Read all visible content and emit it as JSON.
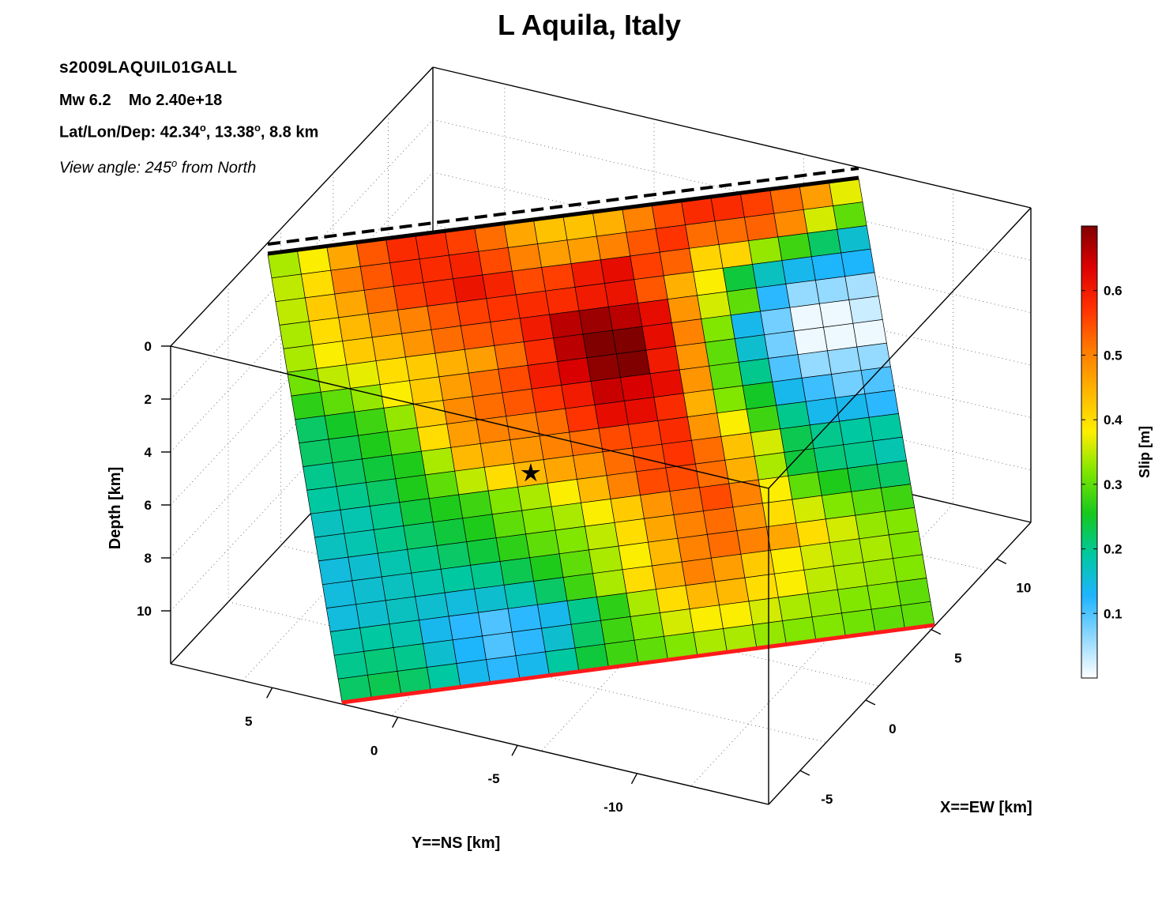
{
  "chart_data": {
    "type": "heatmap",
    "title": "L Aquila, Italy",
    "event_id": "s2009LAQUIL01GALL",
    "magnitude": "Mw 6.2",
    "moment": "Mo 2.40e+18",
    "hypocenter_prefix": "Lat/Lon/Dep: 42.34",
    "hypocenter_lon": ", 13.38",
    "hypocenter_dep": ", 8.8 km",
    "degree_symbol": "o",
    "view_prefix": "View angle: 245",
    "view_suffix": " from North",
    "xlabel": "X==EW [km]",
    "ylabel": "Y==NS [km]",
    "zlabel": "Depth [km]",
    "colorbar_label": "Slip [m]",
    "x_ticks": [
      "-5",
      "0",
      "5",
      "10"
    ],
    "y_ticks": [
      "5",
      "0",
      "-5",
      "-10"
    ],
    "z_ticks": [
      "0",
      "2",
      "4",
      "6",
      "8",
      "10"
    ],
    "colorbar_ticks": [
      "0.1",
      "0.2",
      "0.3",
      "0.4",
      "0.5",
      "0.6"
    ],
    "colorbar_range": [
      0,
      0.7
    ],
    "view_angle_deg": 245,
    "grid": true,
    "colormap": [
      "#ffffff",
      "#8fd8ff",
      "#1eb4ff",
      "#00c8a0",
      "#15c81e",
      "#7de600",
      "#ffee00",
      "#ffb400",
      "#ff7a00",
      "#ff3000",
      "#dd0000",
      "#800000"
    ],
    "hypocenter_marker": {
      "row": 10,
      "col": 7
    },
    "slip_rows": [
      [
        0.34,
        0.38,
        0.46,
        0.54,
        0.58,
        0.58,
        0.56,
        0.52,
        0.46,
        0.43,
        0.43,
        0.45,
        0.5,
        0.55,
        0.58,
        0.58,
        0.56,
        0.52,
        0.47,
        0.37
      ],
      [
        0.35,
        0.4,
        0.5,
        0.54,
        0.58,
        0.58,
        0.59,
        0.55,
        0.5,
        0.47,
        0.47,
        0.5,
        0.54,
        0.57,
        0.52,
        0.52,
        0.53,
        0.49,
        0.36,
        0.3
      ],
      [
        0.35,
        0.42,
        0.46,
        0.52,
        0.56,
        0.58,
        0.61,
        0.59,
        0.55,
        0.56,
        0.6,
        0.62,
        0.56,
        0.53,
        0.41,
        0.41,
        0.33,
        0.28,
        0.22,
        0.16
      ],
      [
        0.34,
        0.4,
        0.44,
        0.48,
        0.5,
        0.54,
        0.56,
        0.57,
        0.58,
        0.58,
        0.6,
        0.61,
        0.54,
        0.45,
        0.38,
        0.24,
        0.17,
        0.14,
        0.13,
        0.13
      ],
      [
        0.34,
        0.38,
        0.42,
        0.44,
        0.48,
        0.52,
        0.54,
        0.55,
        0.6,
        0.66,
        0.68,
        0.66,
        0.62,
        0.48,
        0.36,
        0.3,
        0.12,
        0.06,
        0.06,
        0.05
      ],
      [
        0.31,
        0.35,
        0.37,
        0.4,
        0.42,
        0.45,
        0.47,
        0.52,
        0.58,
        0.66,
        0.7,
        0.7,
        0.62,
        0.5,
        0.32,
        0.14,
        0.08,
        0.01,
        0.01,
        0.03
      ],
      [
        0.27,
        0.3,
        0.33,
        0.38,
        0.42,
        0.47,
        0.52,
        0.55,
        0.6,
        0.64,
        0.69,
        0.7,
        0.6,
        0.48,
        0.3,
        0.16,
        0.08,
        0.01,
        0.01,
        0.01
      ],
      [
        0.22,
        0.25,
        0.28,
        0.33,
        0.42,
        0.49,
        0.52,
        0.54,
        0.57,
        0.6,
        0.65,
        0.64,
        0.62,
        0.48,
        0.3,
        0.2,
        0.1,
        0.06,
        0.06,
        0.06
      ],
      [
        0.22,
        0.23,
        0.26,
        0.3,
        0.4,
        0.47,
        0.5,
        0.5,
        0.52,
        0.57,
        0.62,
        0.62,
        0.58,
        0.45,
        0.32,
        0.25,
        0.14,
        0.11,
        0.08,
        0.1
      ],
      [
        0.2,
        0.22,
        0.24,
        0.26,
        0.34,
        0.44,
        0.46,
        0.48,
        0.5,
        0.52,
        0.55,
        0.56,
        0.58,
        0.48,
        0.38,
        0.28,
        0.2,
        0.14,
        0.14,
        0.12
      ],
      [
        0.19,
        0.2,
        0.22,
        0.26,
        0.3,
        0.35,
        0.4,
        0.44,
        0.46,
        0.48,
        0.52,
        0.55,
        0.57,
        0.52,
        0.43,
        0.36,
        0.23,
        0.2,
        0.19,
        0.19
      ],
      [
        0.17,
        0.18,
        0.2,
        0.24,
        0.26,
        0.28,
        0.32,
        0.34,
        0.38,
        0.44,
        0.5,
        0.55,
        0.55,
        0.52,
        0.45,
        0.34,
        0.24,
        0.21,
        0.2,
        0.18
      ],
      [
        0.17,
        0.18,
        0.2,
        0.22,
        0.24,
        0.26,
        0.3,
        0.32,
        0.34,
        0.38,
        0.42,
        0.48,
        0.52,
        0.55,
        0.5,
        0.38,
        0.3,
        0.26,
        0.23,
        0.22
      ],
      [
        0.15,
        0.16,
        0.18,
        0.2,
        0.22,
        0.24,
        0.27,
        0.3,
        0.32,
        0.35,
        0.4,
        0.46,
        0.5,
        0.52,
        0.48,
        0.4,
        0.36,
        0.32,
        0.3,
        0.28
      ],
      [
        0.15,
        0.16,
        0.17,
        0.18,
        0.19,
        0.2,
        0.23,
        0.26,
        0.3,
        0.34,
        0.38,
        0.44,
        0.5,
        0.52,
        0.5,
        0.46,
        0.4,
        0.36,
        0.33,
        0.32
      ],
      [
        0.15,
        0.16,
        0.17,
        0.16,
        0.15,
        0.16,
        0.18,
        0.22,
        0.28,
        0.34,
        0.4,
        0.45,
        0.5,
        0.47,
        0.42,
        0.38,
        0.36,
        0.34,
        0.34,
        0.32
      ],
      [
        0.18,
        0.19,
        0.18,
        0.14,
        0.12,
        0.1,
        0.12,
        0.14,
        0.2,
        0.27,
        0.34,
        0.4,
        0.44,
        0.44,
        0.4,
        0.38,
        0.35,
        0.34,
        0.33,
        0.32
      ],
      [
        0.2,
        0.21,
        0.2,
        0.16,
        0.13,
        0.1,
        0.12,
        0.16,
        0.22,
        0.28,
        0.32,
        0.36,
        0.38,
        0.38,
        0.36,
        0.34,
        0.33,
        0.32,
        0.32,
        0.3
      ],
      [
        0.22,
        0.23,
        0.22,
        0.19,
        0.14,
        0.12,
        0.14,
        0.19,
        0.24,
        0.28,
        0.3,
        0.32,
        0.34,
        0.34,
        0.33,
        0.32,
        0.32,
        0.31,
        0.3,
        0.3
      ]
    ]
  }
}
